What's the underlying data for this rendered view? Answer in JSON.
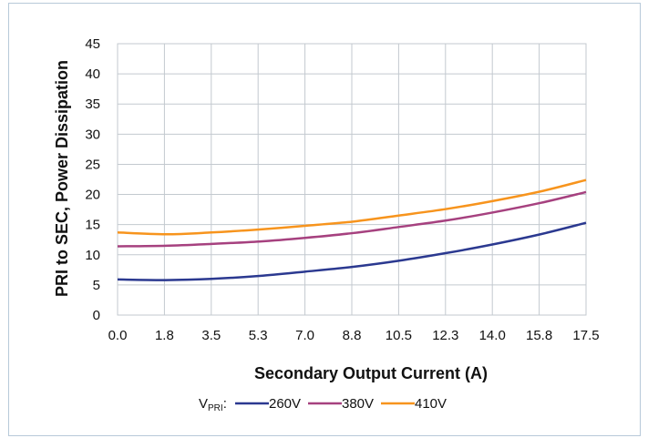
{
  "chart_data": {
    "type": "line",
    "xlabel": "Secondary Output Current (A)",
    "ylabel": "PRI to SEC, Power Dissipation",
    "x_ticks": [
      "0.0",
      "1.8",
      "3.5",
      "5.3",
      "7.0",
      "8.8",
      "10.5",
      "12.3",
      "14.0",
      "15.8",
      "17.5"
    ],
    "y_ticks": [
      "0",
      "5",
      "10",
      "15",
      "20",
      "25",
      "30",
      "35",
      "40",
      "45"
    ],
    "xlim": [
      0,
      17.5
    ],
    "ylim": [
      0,
      45
    ],
    "grid": true,
    "legend_position": "bottom",
    "legend_prefix": "V",
    "legend_prefix_sub": "PRI",
    "legend_prefix_suffix": ":",
    "x": [
      0.0,
      1.8,
      3.5,
      5.3,
      7.0,
      8.8,
      10.5,
      12.3,
      14.0,
      15.8,
      17.5
    ],
    "series": [
      {
        "name": "260V",
        "color": "#2b3990",
        "values": [
          5.9,
          5.8,
          6.0,
          6.5,
          7.2,
          8.0,
          9.0,
          10.3,
          11.7,
          13.4,
          15.3
        ]
      },
      {
        "name": "380V",
        "color": "#a6417f",
        "values": [
          11.4,
          11.5,
          11.8,
          12.2,
          12.8,
          13.6,
          14.6,
          15.7,
          17.0,
          18.6,
          20.4
        ]
      },
      {
        "name": "410V",
        "color": "#f7941d",
        "values": [
          13.7,
          13.4,
          13.7,
          14.2,
          14.8,
          15.5,
          16.5,
          17.6,
          18.9,
          20.5,
          22.4
        ]
      }
    ]
  }
}
